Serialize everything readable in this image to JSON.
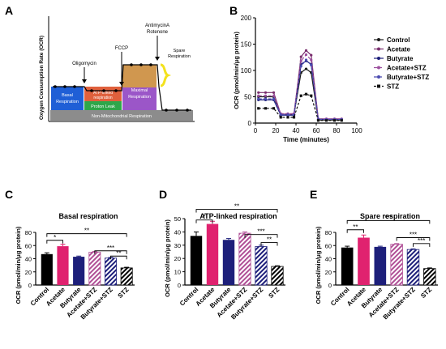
{
  "panel_letters": [
    "A",
    "B",
    "C",
    "D",
    "E"
  ],
  "diagram": {
    "ylabel": "Oxygen Consumption Rate (OCR)",
    "injections": [
      "Oligomycin",
      "FCCP",
      "AntimycinA",
      "Rotenone"
    ],
    "regions": [
      "Basal Respiration",
      "ATP-linked Respiration",
      "Proton Leak",
      "Maximal Respiration",
      "Spare Respiration",
      "Non-Mitochondrial Respiration"
    ],
    "colors": {
      "basal": "#1f5fd6",
      "atp": "#e0603c",
      "leak": "#2ea64a",
      "maximal": "#9b56c8",
      "maximal_top": "#d9a23a",
      "spare_brace": "#f3e21e",
      "nonmito": "#8c8c8c"
    }
  },
  "chart_data": [
    {
      "type": "line",
      "panel": "B",
      "xlabel": "Time (minutes)",
      "ylabel": "OCR (pmol/min/μg protein)",
      "xlim": [
        0,
        100
      ],
      "ylim": [
        0,
        200
      ],
      "xticks": [
        0,
        20,
        40,
        60,
        80,
        100
      ],
      "yticks": [
        0,
        50,
        100,
        150,
        200
      ],
      "x": [
        3,
        10,
        18,
        25,
        32,
        38,
        45,
        50,
        55,
        62,
        70,
        78,
        85
      ],
      "series": [
        {
          "name": "Control",
          "color": "#1a1a1a",
          "dash": "",
          "marker": "circle",
          "values": [
            50,
            50,
            50,
            16,
            16,
            16,
            96,
            103,
            96,
            6,
            6,
            6,
            6
          ]
        },
        {
          "name": "Acetate",
          "color": "#7a2f6e",
          "dash": "",
          "marker": "circle",
          "values": [
            58,
            58,
            58,
            17,
            17,
            17,
            126,
            138,
            129,
            8,
            8,
            8,
            8
          ]
        },
        {
          "name": "Butyrate",
          "color": "#1d1f7a",
          "dash": "",
          "marker": "circle",
          "values": [
            44,
            44,
            44,
            15,
            15,
            15,
            112,
            118,
            112,
            7,
            7,
            7,
            7
          ]
        },
        {
          "name": "Acetate+STZ",
          "color": "#9c4f9e",
          "dash": "4,2",
          "marker": "circle",
          "values": [
            52,
            52,
            52,
            18,
            18,
            18,
            118,
            130,
            120,
            8,
            8,
            8,
            8
          ]
        },
        {
          "name": "Butyrate+STZ",
          "color": "#4a4ab0",
          "dash": "4,2",
          "marker": "circle",
          "values": [
            46,
            46,
            46,
            16,
            16,
            16,
            108,
            120,
            110,
            7,
            7,
            7,
            7
          ]
        },
        {
          "name": "STZ",
          "color": "#111111",
          "dash": "3,2",
          "marker": "square",
          "values": [
            28,
            28,
            28,
            11,
            11,
            11,
            52,
            55,
            52,
            5,
            5,
            5,
            5
          ]
        }
      ]
    },
    {
      "type": "bar",
      "panel": "C",
      "title": "Basal respiration",
      "ylabel": "OCR (pmol/min/μg protein)",
      "ylim": [
        0,
        80
      ],
      "yticks": [
        0,
        20,
        40,
        60,
        80
      ],
      "categories": [
        "Control",
        "Acetate",
        "Butyrate",
        "Acetate+STZ",
        "Butyrate+STZ",
        "STZ"
      ],
      "values": [
        47,
        59,
        43,
        50,
        41,
        26
      ],
      "errors": [
        2,
        3,
        1,
        1,
        1,
        1
      ],
      "sig": [
        {
          "from": 0,
          "to": 1,
          "label": "*",
          "y": 68
        },
        {
          "from": 0,
          "to": 5,
          "label": "**",
          "y": 78
        },
        {
          "from": 3,
          "to": 5,
          "label": "***",
          "y": 52
        },
        {
          "from": 4,
          "to": 5,
          "label": "**",
          "y": 44
        }
      ]
    },
    {
      "type": "bar",
      "panel": "D",
      "title": "ATP-linked respiration",
      "ylabel": "OCR (pmol/min/μg protein)",
      "ylim": [
        0,
        50
      ],
      "yticks": [
        0,
        10,
        20,
        30,
        40,
        50
      ],
      "categories": [
        "Control",
        "Acetate",
        "Butyrate",
        "Acetate+STZ",
        "Butyrate+STZ",
        "STZ"
      ],
      "values": [
        37,
        46,
        34,
        39,
        29,
        14
      ],
      "errors": [
        3,
        2,
        1,
        1,
        1,
        0.5
      ],
      "sig": [
        {
          "from": 0,
          "to": 1,
          "label": "*",
          "y": 49
        },
        {
          "from": 0,
          "to": 5,
          "label": "**",
          "y": 57
        },
        {
          "from": 3,
          "to": 5,
          "label": "***",
          "y": 38
        },
        {
          "from": 4,
          "to": 5,
          "label": "**",
          "y": 32
        }
      ]
    },
    {
      "type": "bar",
      "panel": "E",
      "title": "Spare respiration",
      "ylabel": "OCR (pmol/min/μg protein)",
      "ylim": [
        0,
        80
      ],
      "yticks": [
        0,
        20,
        40,
        60,
        80
      ],
      "categories": [
        "Control",
        "Acetate",
        "Butyrate",
        "Acetate+STZ",
        "Butyrate+STZ",
        "STZ"
      ],
      "values": [
        57,
        72,
        58,
        62,
        54,
        25
      ],
      "errors": [
        2,
        4,
        1,
        1,
        1,
        1
      ],
      "sig": [
        {
          "from": 0,
          "to": 1,
          "label": "**",
          "y": 84
        },
        {
          "from": 0,
          "to": 5,
          "label": "***",
          "y": 98
        },
        {
          "from": 3,
          "to": 5,
          "label": "***",
          "y": 72
        },
        {
          "from": 4,
          "to": 5,
          "label": "***",
          "y": 63
        }
      ]
    }
  ],
  "bar_styles": [
    {
      "fill": "#000000",
      "pattern": ""
    },
    {
      "fill": "#e0226f",
      "pattern": ""
    },
    {
      "fill": "#1d1f7a",
      "pattern": ""
    },
    {
      "fill": "#b04f96",
      "pattern": "hatch"
    },
    {
      "fill": "#1d1f7a",
      "pattern": "hatch"
    },
    {
      "fill": "#000000",
      "pattern": "hatch"
    }
  ]
}
